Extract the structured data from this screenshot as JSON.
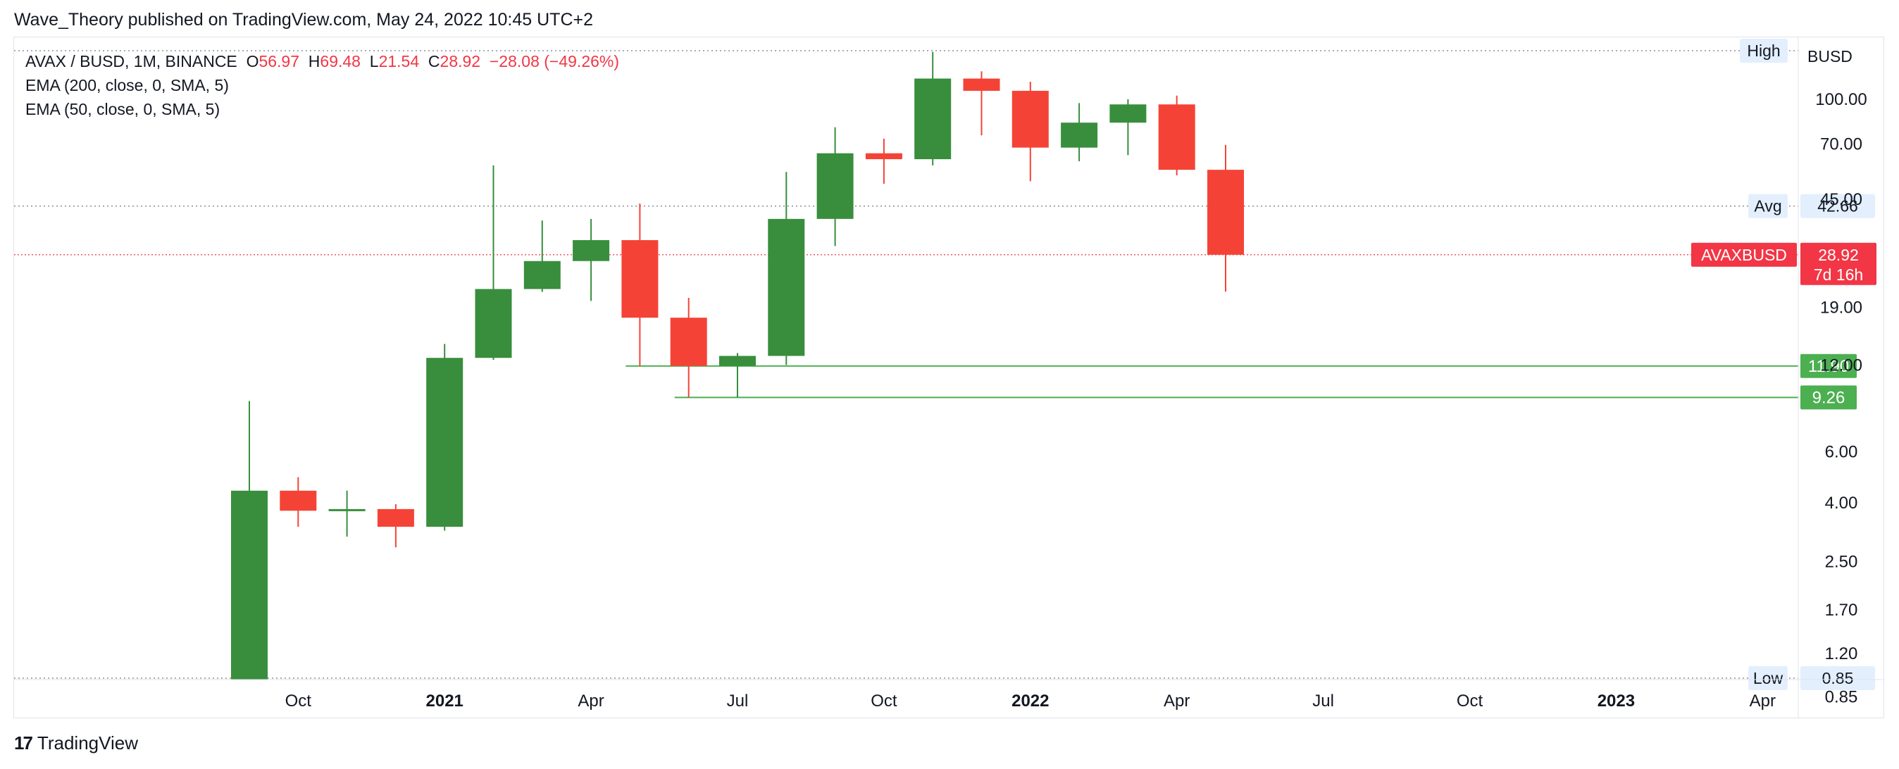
{
  "header": {
    "publish_line": "Wave_Theory published on TradingView.com, May 24, 2022 10:45 UTC+2"
  },
  "legend": {
    "symbol_line": "AVAX / BUSD, 1M, BINANCE",
    "o_label": "O",
    "o_value": "56.97",
    "h_label": "H",
    "h_value": "69.48",
    "l_label": "L",
    "l_value": "21.54",
    "c_label": "C",
    "c_value": "28.92",
    "change": "−28.08 (−49.26%)",
    "indicator_1": "EMA (200, close, 0, SMA, 5)",
    "indicator_2": "EMA (50, close, 0, SMA, 5)"
  },
  "footer": {
    "logo_mark": "17",
    "logo_text": "TradingView"
  },
  "colors": {
    "up": "#388e3c",
    "down": "#f44336",
    "hline": "#4caf50",
    "grid_dotted": "#787b86",
    "last_price": "#f23645"
  },
  "chart_data": {
    "type": "candlestick",
    "symbol": "AVAXBUSD",
    "interval": "1M",
    "y_scale": "log",
    "y_unit": "BUSD",
    "ylim": [
      0.85,
      160
    ],
    "x_range": [
      "2020-06",
      "2023-04"
    ],
    "x_ticks": [
      {
        "label": "Oct",
        "date": "2020-10",
        "bold": false
      },
      {
        "label": "2021",
        "date": "2021-01",
        "bold": true
      },
      {
        "label": "Apr",
        "date": "2021-04",
        "bold": false
      },
      {
        "label": "Jul",
        "date": "2021-07",
        "bold": false
      },
      {
        "label": "Oct",
        "date": "2021-10",
        "bold": false
      },
      {
        "label": "2022",
        "date": "2022-01",
        "bold": true
      },
      {
        "label": "Apr",
        "date": "2022-04",
        "bold": false
      },
      {
        "label": "Jul",
        "date": "2022-07",
        "bold": false
      },
      {
        "label": "Oct",
        "date": "2022-10",
        "bold": false
      },
      {
        "label": "2023",
        "date": "2023-01",
        "bold": true
      },
      {
        "label": "Apr",
        "date": "2023-04",
        "bold": false
      }
    ],
    "y_ticks": [
      "100.00",
      "70.00",
      "19.00",
      "6.00",
      "4.00",
      "2.50",
      "1.70",
      "1.20"
    ],
    "y_ticks_partial": [
      "45.00",
      "12.00",
      "0.85"
    ],
    "candles": [
      {
        "date": "2020-09",
        "open": 0.85,
        "high": 9.0,
        "low": 0.85,
        "close": 4.4
      },
      {
        "date": "2020-10",
        "open": 4.4,
        "high": 4.9,
        "low": 3.3,
        "close": 3.75
      },
      {
        "date": "2020-11",
        "open": 3.75,
        "high": 4.4,
        "low": 3.05,
        "close": 3.8
      },
      {
        "date": "2020-12",
        "open": 3.8,
        "high": 3.95,
        "low": 2.8,
        "close": 3.3
      },
      {
        "date": "2021-01",
        "open": 3.3,
        "high": 14.2,
        "low": 3.2,
        "close": 12.7
      },
      {
        "date": "2021-02",
        "open": 12.7,
        "high": 59.0,
        "low": 12.5,
        "close": 22.0
      },
      {
        "date": "2021-03",
        "open": 22.0,
        "high": 38.0,
        "low": 21.5,
        "close": 27.5
      },
      {
        "date": "2021-04",
        "open": 27.5,
        "high": 38.5,
        "low": 20.0,
        "close": 32.5
      },
      {
        "date": "2021-05",
        "open": 32.5,
        "high": 43.5,
        "low": 11.9,
        "close": 17.5
      },
      {
        "date": "2021-06",
        "open": 17.5,
        "high": 20.5,
        "low": 9.26,
        "close": 11.9
      },
      {
        "date": "2021-07",
        "open": 11.9,
        "high": 13.2,
        "low": 9.26,
        "close": 12.9
      },
      {
        "date": "2021-08",
        "open": 12.9,
        "high": 56.0,
        "low": 12.0,
        "close": 38.5
      },
      {
        "date": "2021-09",
        "open": 38.5,
        "high": 80.0,
        "low": 31.0,
        "close": 65.0
      },
      {
        "date": "2021-10",
        "open": 65.0,
        "high": 73.0,
        "low": 51.0,
        "close": 62.0
      },
      {
        "date": "2021-11",
        "open": 62.0,
        "high": 146.0,
        "low": 59.0,
        "close": 118.0
      },
      {
        "date": "2021-12",
        "open": 118.0,
        "high": 125.0,
        "low": 75.0,
        "close": 107.0
      },
      {
        "date": "2022-01",
        "open": 107.0,
        "high": 115.0,
        "low": 52.0,
        "close": 68.0
      },
      {
        "date": "2022-02",
        "open": 68.0,
        "high": 97.0,
        "low": 61.0,
        "close": 83.0
      },
      {
        "date": "2022-03",
        "open": 83.0,
        "high": 100.0,
        "low": 64.0,
        "close": 96.0
      },
      {
        "date": "2022-04",
        "open": 96.0,
        "high": 103.0,
        "low": 54.5,
        "close": 56.97
      },
      {
        "date": "2022-05",
        "open": 56.97,
        "high": 69.48,
        "low": 21.54,
        "close": 28.92
      }
    ],
    "horizontal_lines": [
      {
        "value": 11.9,
        "label": "11.90",
        "from_date": "2021-05",
        "color": "#4caf50"
      },
      {
        "value": 9.26,
        "label": "9.26",
        "from_date": "2021-06",
        "color": "#4caf50"
      }
    ],
    "reference_lines": [
      {
        "name": "High",
        "label": "High",
        "value": 146.0
      },
      {
        "name": "Avg",
        "label": "Avg",
        "value": 42.66,
        "price_label": "42.66"
      },
      {
        "name": "Low",
        "label": "Low",
        "value": 0.85,
        "price_label": "0.85"
      }
    ],
    "last_price": {
      "symbol_label": "AVAXBUSD",
      "value": 28.92,
      "price_label": "28.92",
      "countdown": "7d 16h"
    }
  }
}
